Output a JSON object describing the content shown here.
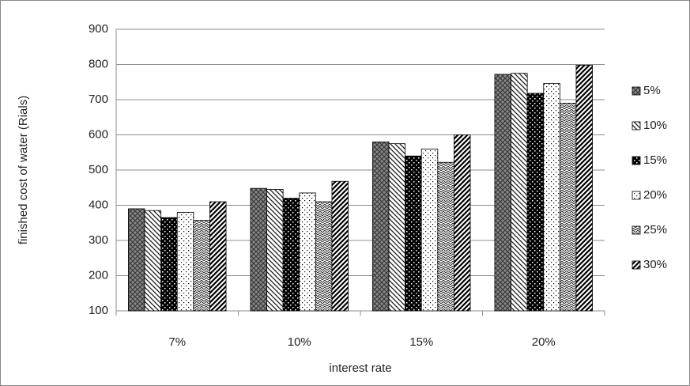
{
  "chart_data": {
    "type": "bar",
    "x_label": "interest rate",
    "y_label": "finished cost of water (Rials)",
    "categories": [
      "7%",
      "10%",
      "15%",
      "20%"
    ],
    "series": [
      {
        "name": "5%",
        "color": "#3a3a3a",
        "values": [
          390,
          448,
          580,
          772
        ]
      },
      {
        "name": "10%",
        "color": "#1a1a1a",
        "values": [
          385,
          445,
          575,
          775
        ]
      },
      {
        "name": "15%",
        "color": "#000000",
        "values": [
          365,
          420,
          540,
          718
        ]
      },
      {
        "name": "20%",
        "color": "#000000",
        "values": [
          380,
          435,
          560,
          746
        ]
      },
      {
        "name": "25%",
        "color": "#2a2a2a",
        "values": [
          357,
          410,
          522,
          690
        ]
      },
      {
        "name": "30%",
        "color": "#000000",
        "values": [
          410,
          468,
          600,
          798
        ]
      }
    ],
    "ylim": [
      100,
      900
    ],
    "yticks": [
      100,
      200,
      300,
      400,
      500,
      600,
      700,
      800,
      900
    ],
    "grid": true,
    "legend": "right"
  }
}
